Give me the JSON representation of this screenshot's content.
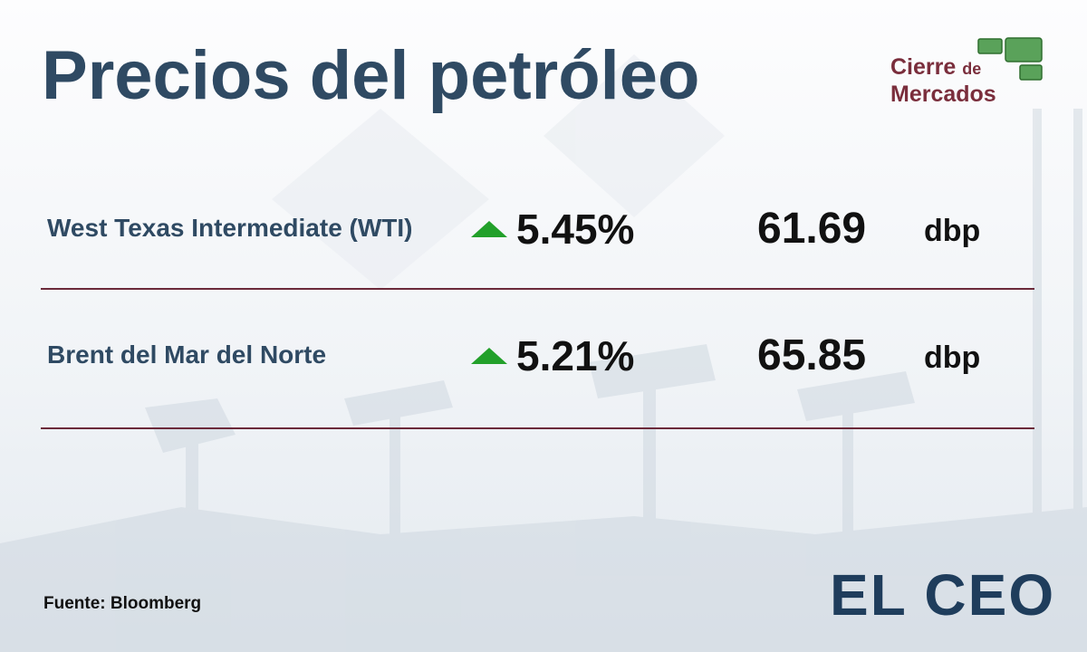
{
  "header": {
    "title": "Precios del petróleo",
    "badge": {
      "line1": "Cierre",
      "line1_small": "de",
      "line2": "Mercados"
    }
  },
  "rows": [
    {
      "name": "West Texas Intermediate (WTI)",
      "change": "5.45%",
      "price": "61.69",
      "unit": "dbp"
    },
    {
      "name": "Brent del Mar del Norte",
      "change": "5.21%",
      "price": "65.85",
      "unit": "dbp"
    }
  ],
  "footer": {
    "source": "Fuente: Bloomberg",
    "logo": "EL CEO"
  }
}
